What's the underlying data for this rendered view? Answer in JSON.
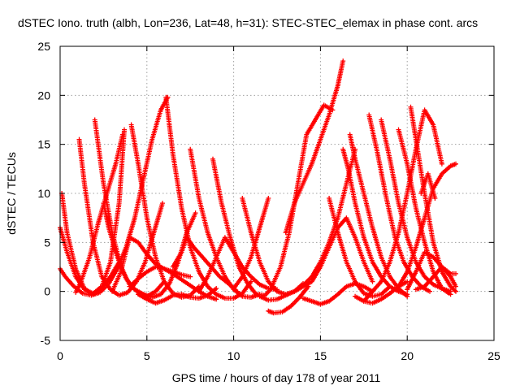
{
  "chart_data": {
    "type": "scatter",
    "title": "dSTEC Iono. truth (albh, Lon=236, Lat=48, h=31): STEC-STEC_elemax in phase cont. arcs",
    "xlabel": "GPS time / hours of day 178 of year 2011",
    "ylabel": "dSTEC  / TECUs",
    "xlim": [
      0,
      25
    ],
    "ylim": [
      -5,
      25
    ],
    "xticks": [
      0,
      5,
      10,
      15,
      20,
      25
    ],
    "yticks": [
      -5,
      0,
      5,
      10,
      15,
      20,
      25
    ],
    "grid": true,
    "marker": "plus",
    "color": "#ff0000",
    "series": [
      {
        "x": [
          0.0,
          0.3,
          0.8,
          1.3,
          1.8,
          2.3,
          2.8,
          3.3,
          3.8,
          4.3,
          4.8,
          5.3,
          5.8,
          6.2
        ],
        "y": [
          2.3,
          1.5,
          0.5,
          -0.2,
          -0.4,
          -0.1,
          0.8,
          2.3,
          4.5,
          7.5,
          11.5,
          15.5,
          18.5,
          19.8
        ]
      },
      {
        "x": [
          0.1,
          0.4,
          0.9,
          1.4,
          1.9,
          2.4,
          2.9,
          3.4
        ],
        "y": [
          10.0,
          6.0,
          2.3,
          0.3,
          -0.3,
          0.3,
          1.5,
          3.0
        ]
      },
      {
        "x": [
          0.0,
          0.4,
          0.9,
          1.4,
          1.9,
          2.4,
          2.9,
          3.4,
          3.7
        ],
        "y": [
          6.5,
          4.0,
          1.5,
          0.2,
          -0.2,
          0.5,
          3.0,
          9.0,
          16.5
        ]
      },
      {
        "x": [
          0.9,
          1.2,
          1.7,
          2.2,
          2.7,
          3.2,
          3.6
        ],
        "y": [
          -0.1,
          1.0,
          3.5,
          7.0,
          10.0,
          13.0,
          16.0
        ]
      },
      {
        "x": [
          1.1,
          1.4,
          1.9,
          2.4,
          2.9,
          3.4,
          3.9,
          4.4,
          4.9,
          5.4,
          5.9
        ],
        "y": [
          15.5,
          11.0,
          5.0,
          1.5,
          0.2,
          -0.4,
          -0.1,
          1.0,
          3.0,
          6.0,
          9.0
        ]
      },
      {
        "x": [
          2.0,
          2.5,
          3.0,
          3.5,
          4.0,
          4.5,
          5.0,
          5.5,
          6.0
        ],
        "y": [
          17.5,
          11.0,
          6.0,
          2.5,
          0.7,
          -0.1,
          -0.5,
          0.0,
          1.0
        ]
      },
      {
        "x": [
          2.5,
          2.8,
          3.3,
          3.8,
          4.3,
          4.8,
          5.3,
          5.8,
          6.3,
          6.8,
          7.3,
          7.8
        ],
        "y": [
          9.0,
          6.5,
          3.5,
          1.3,
          0.2,
          -0.3,
          -0.6,
          -0.3,
          0.8,
          3.0,
          6.0,
          8.0
        ]
      },
      {
        "x": [
          3.0,
          3.5,
          4.0,
          4.5,
          5.0,
          5.5,
          6.0,
          6.5,
          7.0,
          7.5
        ],
        "y": [
          0.0,
          2.0,
          5.5,
          5.0,
          3.8,
          2.8,
          2.3,
          2.0,
          1.7,
          1.5
        ]
      },
      {
        "x": [
          4.1,
          4.5,
          5.0,
          5.5,
          6.0,
          6.5,
          7.0,
          7.5,
          8.0
        ],
        "y": [
          17.0,
          13.0,
          7.5,
          3.5,
          1.0,
          -0.2,
          -0.6,
          -0.4,
          0.5
        ]
      },
      {
        "x": [
          4.0,
          4.5,
          5.0,
          5.5,
          6.0,
          6.5,
          7.0,
          7.5,
          8.0,
          8.5,
          9.0
        ],
        "y": [
          0.5,
          1.3,
          2.0,
          2.5,
          2.3,
          1.8,
          1.2,
          0.6,
          0.0,
          -0.5,
          -0.8
        ]
      },
      {
        "x": [
          4.5,
          5.0,
          5.5,
          6.0,
          6.5,
          7.0,
          7.5,
          8.0,
          8.5,
          9.0
        ],
        "y": [
          -0.3,
          -0.8,
          -1.2,
          -0.9,
          -0.4,
          -0.3,
          -0.6,
          -0.7,
          -0.4,
          0.3
        ]
      },
      {
        "x": [
          6.1,
          6.5,
          7.0,
          7.5,
          8.0,
          8.5,
          9.0,
          9.5,
          10.0,
          10.5,
          11.0
        ],
        "y": [
          19.8,
          14.0,
          8.5,
          4.5,
          2.0,
          0.5,
          -0.3,
          -0.7,
          -0.7,
          -0.2,
          1.0
        ]
      },
      {
        "x": [
          6.5,
          7.0,
          7.3,
          7.7,
          8.2,
          8.7,
          9.2,
          9.7,
          10.2
        ],
        "y": [
          2.5,
          4.0,
          5.5,
          4.5,
          3.5,
          2.5,
          1.5,
          0.8,
          0.0
        ]
      },
      {
        "x": [
          7.5,
          8.0,
          8.5,
          9.0,
          9.5,
          10.0,
          10.5,
          11.0,
          11.5
        ],
        "y": [
          14.5,
          9.5,
          6.0,
          3.5,
          1.5,
          0.2,
          -0.5,
          -0.6,
          -0.3
        ]
      },
      {
        "x": [
          8.8,
          9.3,
          9.8,
          10.3,
          10.8,
          11.3,
          11.8,
          12.3
        ],
        "y": [
          13.5,
          9.0,
          5.5,
          2.5,
          0.8,
          -0.3,
          -0.4,
          0.5
        ]
      },
      {
        "x": [
          8.0,
          8.5,
          9.0,
          9.5,
          10.0,
          10.5,
          11.0,
          11.5,
          12.0,
          12.5
        ],
        "y": [
          0.0,
          1.5,
          3.5,
          5.5,
          4.0,
          2.5,
          1.5,
          0.7,
          0.3,
          0.2
        ]
      },
      {
        "x": [
          10.5,
          11.0,
          11.5,
          12.0,
          12.5,
          13.0,
          13.5,
          14.0
        ],
        "y": [
          9.5,
          6.0,
          3.0,
          1.0,
          0.0,
          -0.3,
          0.0,
          0.8
        ]
      },
      {
        "x": [
          10.0,
          10.5,
          11.0,
          11.5,
          12.0
        ],
        "y": [
          0.3,
          1.5,
          3.5,
          6.5,
          9.5
        ]
      },
      {
        "x": [
          11.5,
          12.0,
          12.5,
          13.0,
          13.5,
          14.0,
          14.5,
          15.0,
          15.5,
          16.0,
          16.5,
          17.0
        ],
        "y": [
          -0.5,
          -0.9,
          -0.8,
          -0.4,
          0.0,
          0.6,
          1.5,
          3.0,
          5.0,
          7.5,
          11.0,
          14.5
        ]
      },
      {
        "x": [
          12.0,
          12.3,
          12.8,
          13.3,
          13.8,
          14.3
        ],
        "y": [
          -2.0,
          -2.2,
          -2.1,
          -1.5,
          -0.6,
          0.5
        ]
      },
      {
        "x": [
          12.2,
          12.7,
          13.2,
          13.7,
          14.2,
          14.7,
          15.2,
          15.7
        ],
        "y": [
          0.5,
          2.5,
          6.0,
          11.0,
          16.0,
          17.5,
          19.0,
          18.5
        ]
      },
      {
        "x": [
          13.0,
          13.5,
          14.0,
          14.5,
          15.0,
          15.5,
          16.0,
          16.3
        ],
        "y": [
          6.0,
          9.0,
          11.0,
          13.0,
          15.5,
          18.0,
          21.0,
          23.5
        ]
      },
      {
        "x": [
          13.5,
          14.0,
          14.5,
          15.0,
          15.5,
          16.0,
          16.5,
          17.0,
          17.5,
          18.0
        ],
        "y": [
          0.0,
          0.5,
          1.0,
          2.5,
          4.5,
          6.5,
          7.5,
          5.5,
          3.0,
          1.0
        ]
      },
      {
        "x": [
          14.0,
          14.5,
          15.0,
          15.5,
          16.0,
          16.5,
          17.0,
          17.5,
          18.0
        ],
        "y": [
          -0.7,
          -1.0,
          -1.3,
          -1.0,
          -0.3,
          0.5,
          0.8,
          0.5,
          0.0
        ]
      },
      {
        "x": [
          15.5,
          16.0,
          16.5,
          17.0,
          17.5,
          18.0,
          18.5,
          19.0
        ],
        "y": [
          9.5,
          6.0,
          3.0,
          1.0,
          -0.2,
          -0.5,
          -0.3,
          0.5
        ]
      },
      {
        "x": [
          16.3,
          16.6,
          17.0,
          17.5,
          18.0,
          18.5,
          19.0,
          19.5,
          20.0
        ],
        "y": [
          14.5,
          12.5,
          9.0,
          5.5,
          3.0,
          1.5,
          0.5,
          0.0,
          -0.3
        ]
      },
      {
        "x": [
          16.7,
          17.0,
          17.5,
          18.0,
          18.5,
          19.0,
          19.5,
          20.0
        ],
        "y": [
          16.0,
          13.5,
          10.0,
          6.5,
          3.5,
          1.5,
          0.3,
          -0.5
        ]
      },
      {
        "x": [
          17.0,
          17.5,
          18.0,
          18.5,
          19.0,
          19.5,
          20.0
        ],
        "y": [
          -0.5,
          -1.0,
          -1.2,
          -0.8,
          -0.2,
          0.5,
          1.0
        ]
      },
      {
        "x": [
          17.5,
          18.0,
          18.5,
          19.0,
          19.5,
          20.0,
          20.5,
          21.0,
          21.5,
          22.0
        ],
        "y": [
          -1.0,
          0.0,
          1.0,
          3.0,
          6.0,
          10.0,
          14.5,
          18.5,
          17.0,
          13.0
        ]
      },
      {
        "x": [
          17.8,
          18.3,
          18.8,
          19.3,
          19.8,
          20.3,
          20.8,
          21.3
        ],
        "y": [
          18.0,
          14.0,
          9.5,
          5.5,
          3.0,
          1.5,
          0.5,
          0.0
        ]
      },
      {
        "x": [
          18.5,
          19.0,
          19.5,
          20.0,
          20.5,
          21.0,
          21.5,
          22.0,
          22.5
        ],
        "y": [
          17.5,
          13.5,
          9.0,
          5.5,
          3.0,
          1.5,
          0.7,
          0.3,
          0.0
        ]
      },
      {
        "x": [
          19.5,
          20.0,
          20.5,
          21.0,
          21.5,
          22.0,
          22.5
        ],
        "y": [
          16.5,
          13.0,
          8.5,
          5.0,
          2.0,
          0.3,
          -0.3
        ]
      },
      {
        "x": [
          20.2,
          20.5,
          21.0,
          21.5,
          22.0,
          22.5,
          22.8
        ],
        "y": [
          18.8,
          15.5,
          10.0,
          5.0,
          2.0,
          0.5,
          0.0
        ]
      },
      {
        "x": [
          19.5,
          20.0,
          20.5,
          21.0,
          21.5,
          22.0,
          22.5,
          22.8
        ],
        "y": [
          0.5,
          2.0,
          4.5,
          7.5,
          10.5,
          12.0,
          12.8,
          13.0
        ]
      },
      {
        "x": [
          20.0,
          20.5,
          21.0,
          21.5,
          22.0,
          22.5,
          22.8
        ],
        "y": [
          0.2,
          2.0,
          4.0,
          3.5,
          2.5,
          1.8,
          1.8
        ]
      },
      {
        "x": [
          20.5,
          21.0,
          21.5,
          22.0,
          22.5,
          22.8
        ],
        "y": [
          0.2,
          0.5,
          1.5,
          2.5,
          1.5,
          0.5
        ]
      },
      {
        "x": [
          20.8,
          21.2,
          21.6
        ],
        "y": [
          10.0,
          12.0,
          9.5
        ]
      }
    ]
  }
}
